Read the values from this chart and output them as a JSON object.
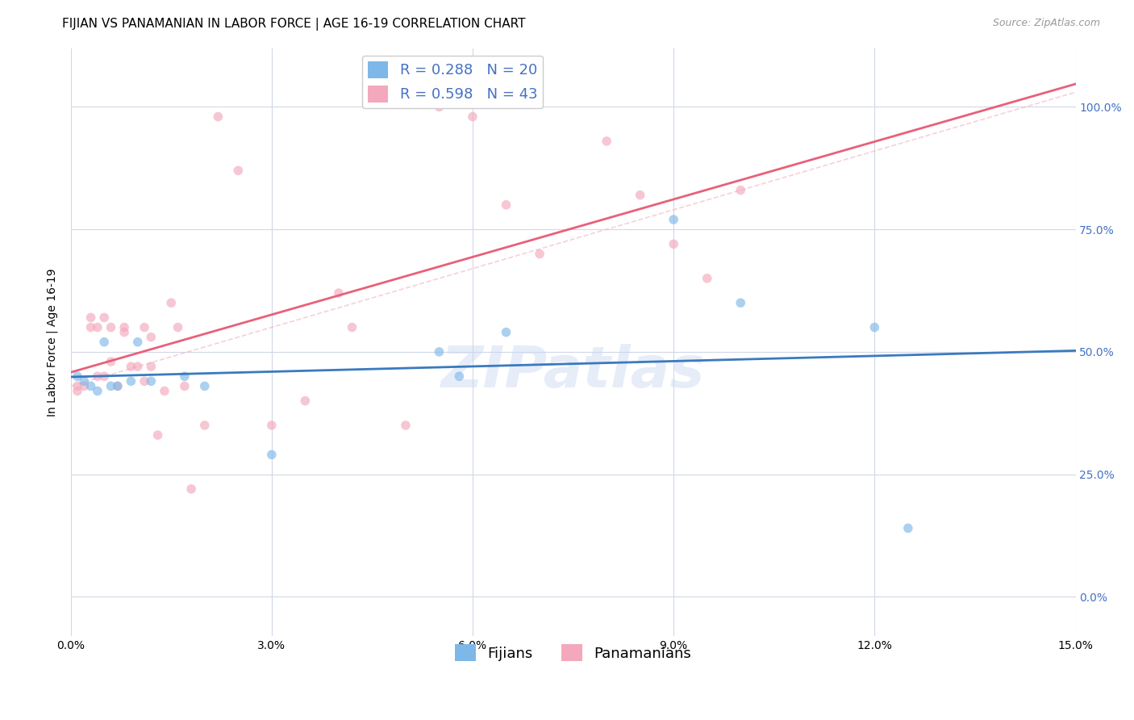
{
  "title": "FIJIAN VS PANAMANIAN IN LABOR FORCE | AGE 16-19 CORRELATION CHART",
  "source": "Source: ZipAtlas.com",
  "ylabel": "In Labor Force | Age 16-19",
  "xlim": [
    0.0,
    0.15
  ],
  "ylim": [
    -0.08,
    1.12
  ],
  "xticks": [
    0.0,
    0.03,
    0.06,
    0.09,
    0.12,
    0.15
  ],
  "xtick_labels": [
    "0.0%",
    "3.0%",
    "6.0%",
    "9.0%",
    "12.0%",
    "15.0%"
  ],
  "yticks": [
    0.0,
    0.25,
    0.5,
    0.75,
    1.0
  ],
  "ytick_labels": [
    "0.0%",
    "25.0%",
    "50.0%",
    "75.0%",
    "100.0%"
  ],
  "fijian_x": [
    0.001,
    0.002,
    0.003,
    0.004,
    0.005,
    0.006,
    0.007,
    0.009,
    0.01,
    0.012,
    0.017,
    0.02,
    0.03,
    0.055,
    0.058,
    0.065,
    0.09,
    0.1,
    0.12,
    0.125
  ],
  "fijian_y": [
    0.45,
    0.44,
    0.43,
    0.42,
    0.52,
    0.43,
    0.43,
    0.44,
    0.52,
    0.44,
    0.45,
    0.43,
    0.29,
    0.5,
    0.45,
    0.54,
    0.77,
    0.6,
    0.55,
    0.14
  ],
  "panamanian_x": [
    0.001,
    0.001,
    0.002,
    0.003,
    0.003,
    0.004,
    0.004,
    0.005,
    0.005,
    0.006,
    0.006,
    0.007,
    0.008,
    0.008,
    0.009,
    0.01,
    0.011,
    0.011,
    0.012,
    0.012,
    0.013,
    0.014,
    0.015,
    0.016,
    0.017,
    0.018,
    0.02,
    0.022,
    0.025,
    0.03,
    0.035,
    0.04,
    0.042,
    0.05,
    0.055,
    0.06,
    0.065,
    0.07,
    0.08,
    0.085,
    0.09,
    0.095,
    0.1
  ],
  "panamanian_y": [
    0.43,
    0.42,
    0.43,
    0.57,
    0.55,
    0.55,
    0.45,
    0.57,
    0.45,
    0.55,
    0.48,
    0.43,
    0.54,
    0.55,
    0.47,
    0.47,
    0.44,
    0.55,
    0.47,
    0.53,
    0.33,
    0.42,
    0.6,
    0.55,
    0.43,
    0.22,
    0.35,
    0.98,
    0.87,
    0.35,
    0.4,
    0.62,
    0.55,
    0.35,
    1.0,
    0.98,
    0.8,
    0.7,
    0.93,
    0.82,
    0.72,
    0.65,
    0.83
  ],
  "fijian_color": "#7eb8e8",
  "panamanian_color": "#f4a8bc",
  "fijian_line_color": "#3a7abf",
  "panamanian_line_color": "#e8607a",
  "diagonal_color": "#f4a8bc",
  "legend_fijian_label": "R = 0.288   N = 20",
  "legend_panamanian_label": "R = 0.598   N = 43",
  "watermark": "ZIPatlas",
  "title_fontsize": 11,
  "axis_label_fontsize": 10,
  "tick_fontsize": 10,
  "legend_fontsize": 13,
  "source_fontsize": 9,
  "marker_size": 70,
  "marker_alpha": 0.65,
  "background_color": "#ffffff",
  "grid_color": "#d0d8e8",
  "right_ytick_color": "#4472c4"
}
